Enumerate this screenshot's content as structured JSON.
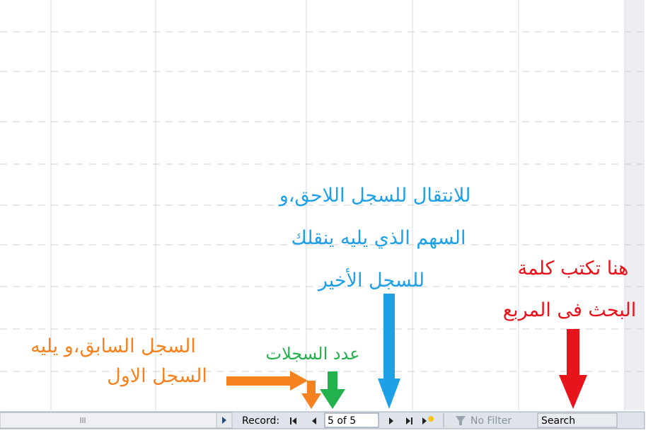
{
  "annotations": {
    "next_last": [
      "للانتقال للسجل اللاحق،و",
      "السهم الذي يليه ينقلك",
      "للسجل الأخير"
    ],
    "search": [
      "هنا تكتب كلمة",
      "البحث فى المربع"
    ],
    "previous_first": [
      "السجل السابق،و يليه",
      "السجل الاول"
    ],
    "record_count": "عدد السجلات"
  },
  "navigation_bar": {
    "record_label": "Record:",
    "position": "5 of 5",
    "filter": "No Filter",
    "search": "Search"
  }
}
